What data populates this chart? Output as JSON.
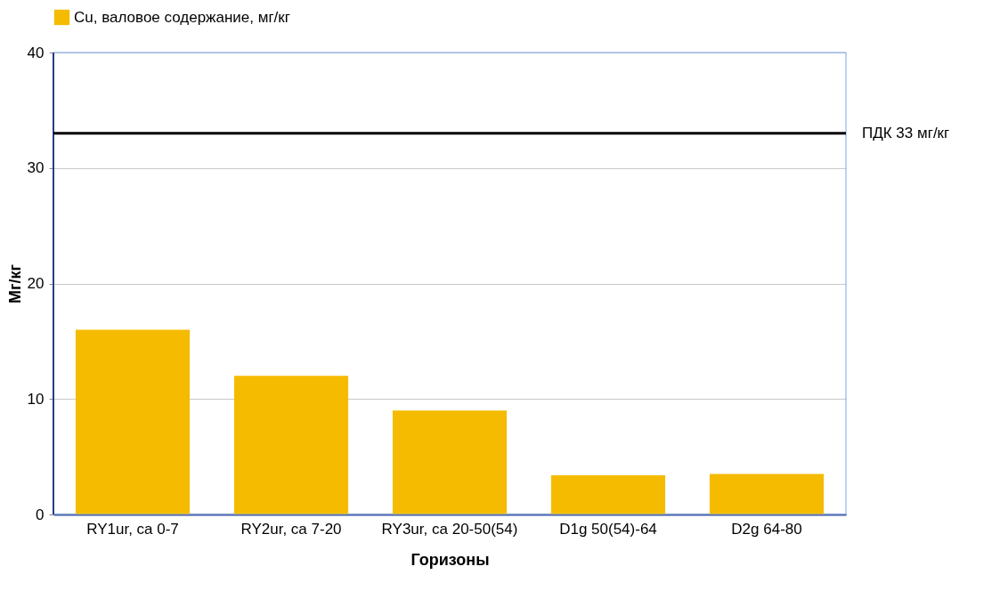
{
  "chart_data": {
    "type": "bar",
    "xlabel": "Горизоны",
    "ylabel": "Мг/кг",
    "categories": [
      "RY1ur, ca 0-7",
      "RY2ur, ca 7-20",
      "RY3ur, ca 20-50(54)",
      "D1g 50(54)-64",
      "D2g 64-80"
    ],
    "series": [
      {
        "name": "Cu, валовое содержание, мг/кг",
        "color": "#f5bb00",
        "values": [
          16,
          12,
          9,
          3.4,
          3.5
        ]
      }
    ],
    "ylim": [
      0,
      40
    ],
    "yticks": [
      0,
      10,
      20,
      30,
      40
    ],
    "grid": "y",
    "legend": "top",
    "ref_lines": [
      {
        "axis": "y",
        "value": 33,
        "label": "ПДК 33 мг/кг",
        "color": "#000000"
      }
    ]
  }
}
